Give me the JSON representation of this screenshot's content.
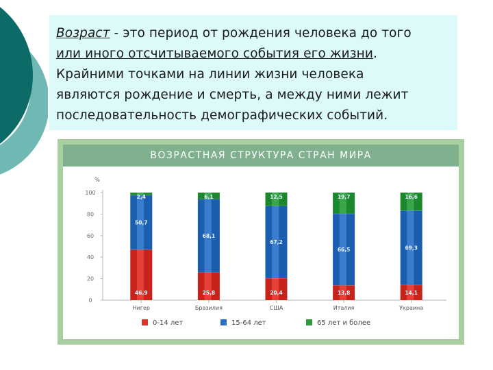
{
  "paragraph": {
    "term": "Возраст",
    "line1_rest": " - это период от рождения человека до того",
    "line2_ul": "или иного отсчитываемого события его жизни",
    "line2_end": ".",
    "line3": "Крайними точками на линии жизни человека",
    "line4": "являются рождение и смерть, а между ними лежит",
    "line5": "последовательность демографических событий."
  },
  "chart_data": {
    "type": "bar",
    "stacked": true,
    "title": "ВОЗРАСТНАЯ СТРУКТУРА СТРАН МИРА",
    "y_unit": "%",
    "ylim": [
      0,
      100
    ],
    "yticks": [
      "100",
      "80",
      "60",
      "40",
      "20",
      "0"
    ],
    "categories": [
      "Нигер",
      "Бразилия",
      "США",
      "Италия",
      "Украина"
    ],
    "series": [
      {
        "name": "0-14 лет",
        "color": "#d8352c",
        "values": [
          46.9,
          25.8,
          20.4,
          13.8,
          14.1
        ]
      },
      {
        "name": "15-64 лет",
        "color": "#2d6fc0",
        "values": [
          50.7,
          68.1,
          67.2,
          66.5,
          69.3
        ]
      },
      {
        "name": "65 лет и более",
        "color": "#2d9a3f",
        "values": [
          2.4,
          6.1,
          12.5,
          19.7,
          16.6
        ]
      }
    ],
    "value_labels": [
      [
        "46,9",
        "50,7",
        "2,4"
      ],
      [
        "25,8",
        "68,1",
        "6,1"
      ],
      [
        "20,4",
        "67,2",
        "12,5"
      ],
      [
        "13,8",
        "66,5",
        "19,7"
      ],
      [
        "14,1",
        "69,3",
        "16,6"
      ]
    ],
    "legend": [
      {
        "label": "0-14 лет",
        "color": "#d8352c"
      },
      {
        "label": "15-64 лет",
        "color": "#2d6fc0"
      },
      {
        "label": "65 лет и более",
        "color": "#2d9a3f"
      }
    ],
    "legend_position": "bottom"
  },
  "colors": {
    "text_bg": "#dcfafa",
    "deco_dark": "#0d6b67",
    "deco_light": "#6fb8b3",
    "chart_frame": "#a9cfa0",
    "title_bar": "#7fb18f"
  }
}
